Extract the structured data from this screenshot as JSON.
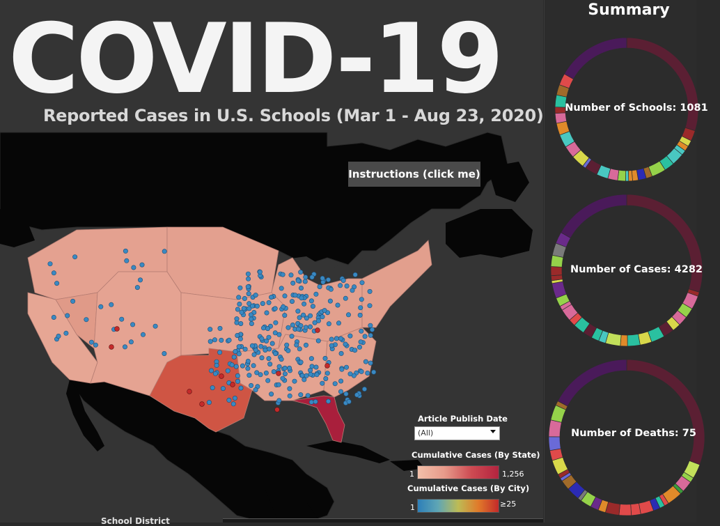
{
  "title": "COVID-19",
  "subtitle": "Reported Cases in U.S. Schools (Mar 1 - Aug 23, 2020)",
  "instructions_button": "Instructions (click me)",
  "filters": {
    "publish_date_title": "Article Publish Date",
    "publish_date_value": "(All)"
  },
  "legend_state": {
    "title": "Cumulative Cases (By State)",
    "min": "1",
    "max": "1,256",
    "colors": [
      "#f2c0aa",
      "#e79a8a",
      "#cd4a52",
      "#b3243f"
    ]
  },
  "legend_city": {
    "title": "Cumulative Cases (By City)",
    "min": "1",
    "max": "≥25",
    "colors": [
      "#2d7fb8",
      "#5fa6b5",
      "#bdbb55",
      "#e07a2a",
      "#c42a2a"
    ]
  },
  "bottom_text": "School District",
  "summary": {
    "title": "Summary",
    "schools_label": "Number of Schools: 1081",
    "cases_label": "Number of Cases: 4282",
    "deaths_label": "Number of Deaths: 75"
  },
  "map_colors": {
    "land_other": "#060606",
    "water": "#343434",
    "state_light": "#e4a190",
    "state_texas": "#cf5544",
    "state_florida": "#a91f3c",
    "city_point": "#3a89c2"
  }
}
